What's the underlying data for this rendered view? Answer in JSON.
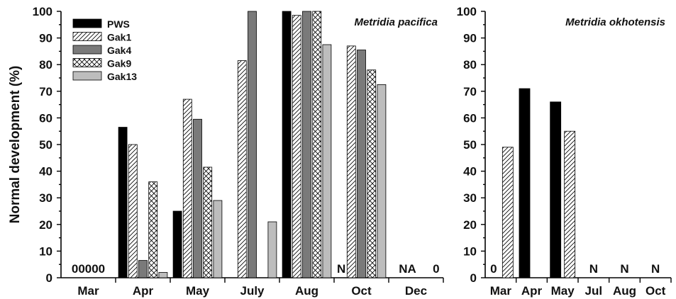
{
  "chart_data": [
    {
      "type": "bar",
      "title": "Metridia pacifica",
      "ylabel": "Normal development (%)",
      "ylim": [
        0,
        100
      ],
      "yticks": [
        0,
        10,
        20,
        30,
        40,
        50,
        60,
        70,
        80,
        90,
        100
      ],
      "categories": [
        "Mar",
        "Apr",
        "May",
        "July",
        "Aug",
        "Oct",
        "Dec"
      ],
      "legend": {
        "placement": "top-left"
      },
      "series": [
        {
          "name": "PWS",
          "pattern": "solid-black",
          "values": [
            0,
            56.5,
            25,
            null,
            100,
            null,
            null
          ]
        },
        {
          "name": "Gak1",
          "pattern": "diagonal-hatch",
          "values": [
            0,
            50,
            67,
            81.5,
            98.5,
            87,
            null
          ]
        },
        {
          "name": "Gak4",
          "pattern": "dark-gray",
          "values": [
            0,
            6.5,
            59.5,
            100,
            100,
            85.5,
            null
          ]
        },
        {
          "name": "Gak9",
          "pattern": "crosshatch",
          "values": [
            0,
            36,
            41.5,
            null,
            100,
            78,
            null
          ]
        },
        {
          "name": "Gak13",
          "pattern": "light-gray",
          "values": [
            0,
            2,
            29,
            21,
            87.5,
            72.5,
            0
          ]
        }
      ],
      "annotations": [
        {
          "text": "00000",
          "category": "Mar"
        },
        {
          "text": "N",
          "category": "Oct",
          "series": "PWS"
        },
        {
          "text": "NA",
          "category": "Dec"
        },
        {
          "text": "0",
          "category": "Dec",
          "series": "Gak13"
        }
      ]
    },
    {
      "type": "bar",
      "title": "Metridia okhotensis",
      "ylim": [
        0,
        100
      ],
      "yticks": [
        0,
        10,
        20,
        30,
        40,
        50,
        60,
        70,
        80,
        90,
        100
      ],
      "categories": [
        "Mar",
        "Apr",
        "May",
        "Jul",
        "Aug",
        "Oct"
      ],
      "series": [
        {
          "name": "PWS",
          "pattern": "solid-black",
          "values": [
            0,
            71,
            66,
            null,
            null,
            null
          ]
        },
        {
          "name": "Gak1",
          "pattern": "diagonal-hatch",
          "values": [
            49,
            null,
            55,
            null,
            null,
            null
          ]
        }
      ],
      "annotations": [
        {
          "text": "0",
          "category": "Mar"
        },
        {
          "text": "N",
          "category": "Jul"
        },
        {
          "text": "N",
          "category": "Aug"
        },
        {
          "text": "N",
          "category": "Oct"
        }
      ]
    }
  ],
  "colors": {
    "PWS": "#000000",
    "Gak4": "#7a7a7a",
    "Gak13": "#bdbdbd",
    "hatch": "#000000",
    "background": "#ffffff"
  }
}
